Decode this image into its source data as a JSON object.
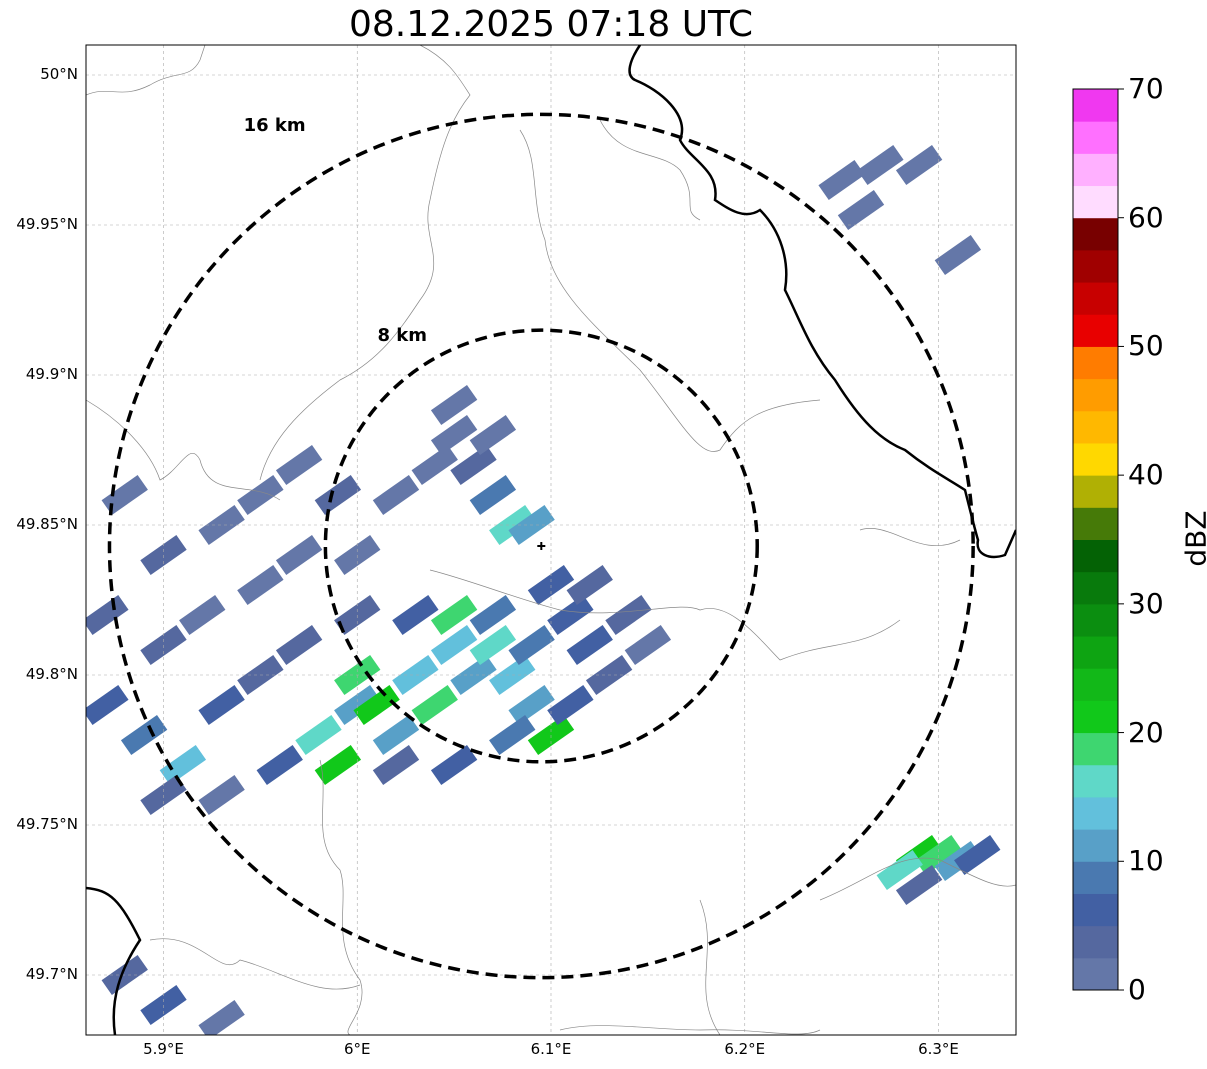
{
  "title": "08.12.2025 07:18 UTC",
  "map": {
    "lat_labels": [
      "50°N",
      "49.95°N",
      "49.9°N",
      "49.85°N",
      "49.8°N",
      "49.75°N",
      "49.7°N"
    ],
    "lat_values": [
      50.0,
      49.95,
      49.9,
      49.85,
      49.8,
      49.75,
      49.7
    ],
    "lon_labels": [
      "5.9°E",
      "6°E",
      "6.1°E",
      "6.2°E",
      "6.3°E"
    ],
    "lon_values": [
      5.9,
      6.0,
      6.1,
      6.2,
      6.3
    ],
    "lon_range": [
      5.86,
      6.34
    ],
    "lat_range": [
      49.68,
      50.01
    ],
    "radar_center": {
      "lon": 6.095,
      "lat": 49.843
    },
    "rings": [
      {
        "label": "8 km",
        "radius_km": 8
      },
      {
        "label": "16 km",
        "radius_km": 16
      }
    ],
    "grid": true
  },
  "colorbar": {
    "label": "dBZ",
    "ticks": [
      "0",
      "10",
      "20",
      "30",
      "40",
      "50",
      "60",
      "70"
    ],
    "range": [
      0,
      70
    ],
    "step": 2.5,
    "colors": [
      "#6477a8",
      "#55689f",
      "#4260a3",
      "#4a79b0",
      "#58a0c8",
      "#62c0dc",
      "#5fd8c8",
      "#3ed670",
      "#11c81a",
      "#12b818",
      "#0ea412",
      "#0b8e10",
      "#087a0c",
      "#046205",
      "#467a08",
      "#b0b004",
      "#ffd800",
      "#ffb800",
      "#ff9c00",
      "#ff7c00",
      "#e80000",
      "#c80000",
      "#a00000",
      "#780000",
      "#ffdcff",
      "#ffb0ff",
      "#ff70ff",
      "#f038f0"
    ]
  },
  "echo_cells": [
    {
      "lon": 5.88,
      "lat": 49.86,
      "dbz": 2
    },
    {
      "lon": 5.9,
      "lat": 49.84,
      "dbz": 3
    },
    {
      "lon": 5.93,
      "lat": 49.85,
      "dbz": 2
    },
    {
      "lon": 5.95,
      "lat": 49.86,
      "dbz": 1
    },
    {
      "lon": 5.97,
      "lat": 49.87,
      "dbz": 2
    },
    {
      "lon": 5.99,
      "lat": 49.86,
      "dbz": 3
    },
    {
      "lon": 5.87,
      "lat": 49.82,
      "dbz": 4
    },
    {
      "lon": 5.9,
      "lat": 49.81,
      "dbz": 3
    },
    {
      "lon": 5.92,
      "lat": 49.82,
      "dbz": 2
    },
    {
      "lon": 5.95,
      "lat": 49.83,
      "dbz": 2
    },
    {
      "lon": 5.97,
      "lat": 49.84,
      "dbz": 1
    },
    {
      "lon": 6.0,
      "lat": 49.84,
      "dbz": 2
    },
    {
      "lon": 5.87,
      "lat": 49.79,
      "dbz": 6
    },
    {
      "lon": 5.89,
      "lat": 49.78,
      "dbz": 8
    },
    {
      "lon": 5.91,
      "lat": 49.77,
      "dbz": 14
    },
    {
      "lon": 5.93,
      "lat": 49.79,
      "dbz": 5
    },
    {
      "lon": 5.95,
      "lat": 49.8,
      "dbz": 4
    },
    {
      "lon": 5.97,
      "lat": 49.81,
      "dbz": 3
    },
    {
      "lon": 5.9,
      "lat": 49.76,
      "dbz": 3
    },
    {
      "lon": 5.93,
      "lat": 49.76,
      "dbz": 2
    },
    {
      "lon": 5.96,
      "lat": 49.77,
      "dbz": 6
    },
    {
      "lon": 5.98,
      "lat": 49.78,
      "dbz": 16
    },
    {
      "lon": 5.99,
      "lat": 49.77,
      "dbz": 20
    },
    {
      "lon": 6.0,
      "lat": 49.79,
      "dbz": 12
    },
    {
      "lon": 6.0,
      "lat": 49.8,
      "dbz": 18
    },
    {
      "lon": 6.01,
      "lat": 49.79,
      "dbz": 22
    },
    {
      "lon": 6.02,
      "lat": 49.78,
      "dbz": 10
    },
    {
      "lon": 6.03,
      "lat": 49.8,
      "dbz": 14
    },
    {
      "lon": 6.04,
      "lat": 49.79,
      "dbz": 19
    },
    {
      "lon": 6.05,
      "lat": 49.81,
      "dbz": 13
    },
    {
      "lon": 6.06,
      "lat": 49.8,
      "dbz": 12
    },
    {
      "lon": 6.07,
      "lat": 49.81,
      "dbz": 15
    },
    {
      "lon": 6.08,
      "lat": 49.8,
      "dbz": 13
    },
    {
      "lon": 6.09,
      "lat": 49.79,
      "dbz": 10
    },
    {
      "lon": 6.1,
      "lat": 49.78,
      "dbz": 22
    },
    {
      "lon": 6.08,
      "lat": 49.78,
      "dbz": 9
    },
    {
      "lon": 6.05,
      "lat": 49.77,
      "dbz": 6
    },
    {
      "lon": 6.02,
      "lat": 49.77,
      "dbz": 4
    },
    {
      "lon": 6.0,
      "lat": 49.82,
      "dbz": 3
    },
    {
      "lon": 6.03,
      "lat": 49.82,
      "dbz": 6
    },
    {
      "lon": 6.05,
      "lat": 49.82,
      "dbz": 19
    },
    {
      "lon": 6.07,
      "lat": 49.82,
      "dbz": 9
    },
    {
      "lon": 6.09,
      "lat": 49.81,
      "dbz": 8
    },
    {
      "lon": 6.11,
      "lat": 49.82,
      "dbz": 6
    },
    {
      "lon": 6.12,
      "lat": 49.81,
      "dbz": 5
    },
    {
      "lon": 6.1,
      "lat": 49.83,
      "dbz": 5
    },
    {
      "lon": 6.12,
      "lat": 49.83,
      "dbz": 3
    },
    {
      "lon": 6.14,
      "lat": 49.82,
      "dbz": 3
    },
    {
      "lon": 6.15,
      "lat": 49.81,
      "dbz": 2
    },
    {
      "lon": 6.13,
      "lat": 49.8,
      "dbz": 4
    },
    {
      "lon": 6.11,
      "lat": 49.79,
      "dbz": 6
    },
    {
      "lon": 6.04,
      "lat": 49.87,
      "dbz": 2
    },
    {
      "lon": 6.05,
      "lat": 49.88,
      "dbz": 1
    },
    {
      "lon": 6.06,
      "lat": 49.87,
      "dbz": 3
    },
    {
      "lon": 6.07,
      "lat": 49.86,
      "dbz": 8
    },
    {
      "lon": 6.08,
      "lat": 49.85,
      "dbz": 16
    },
    {
      "lon": 6.09,
      "lat": 49.85,
      "dbz": 12
    },
    {
      "lon": 6.02,
      "lat": 49.86,
      "dbz": 2
    },
    {
      "lon": 6.05,
      "lat": 49.89,
      "dbz": 1
    },
    {
      "lon": 6.07,
      "lat": 49.88,
      "dbz": 2
    },
    {
      "lon": 6.29,
      "lat": 49.74,
      "dbz": 22
    },
    {
      "lon": 6.3,
      "lat": 49.74,
      "dbz": 18
    },
    {
      "lon": 6.28,
      "lat": 49.735,
      "dbz": 16
    },
    {
      "lon": 6.31,
      "lat": 49.738,
      "dbz": 12
    },
    {
      "lon": 6.32,
      "lat": 49.74,
      "dbz": 6
    },
    {
      "lon": 6.29,
      "lat": 49.73,
      "dbz": 4
    },
    {
      "lon": 6.25,
      "lat": 49.965,
      "dbz": 1
    },
    {
      "lon": 6.27,
      "lat": 49.97,
      "dbz": 0
    },
    {
      "lon": 6.29,
      "lat": 49.97,
      "dbz": 1
    },
    {
      "lon": 6.26,
      "lat": 49.955,
      "dbz": 0
    },
    {
      "lon": 6.31,
      "lat": 49.94,
      "dbz": 1
    },
    {
      "lon": 5.9,
      "lat": 49.69,
      "dbz": 6
    },
    {
      "lon": 5.93,
      "lat": 49.685,
      "dbz": 2
    },
    {
      "lon": 5.88,
      "lat": 49.7,
      "dbz": 3
    }
  ]
}
